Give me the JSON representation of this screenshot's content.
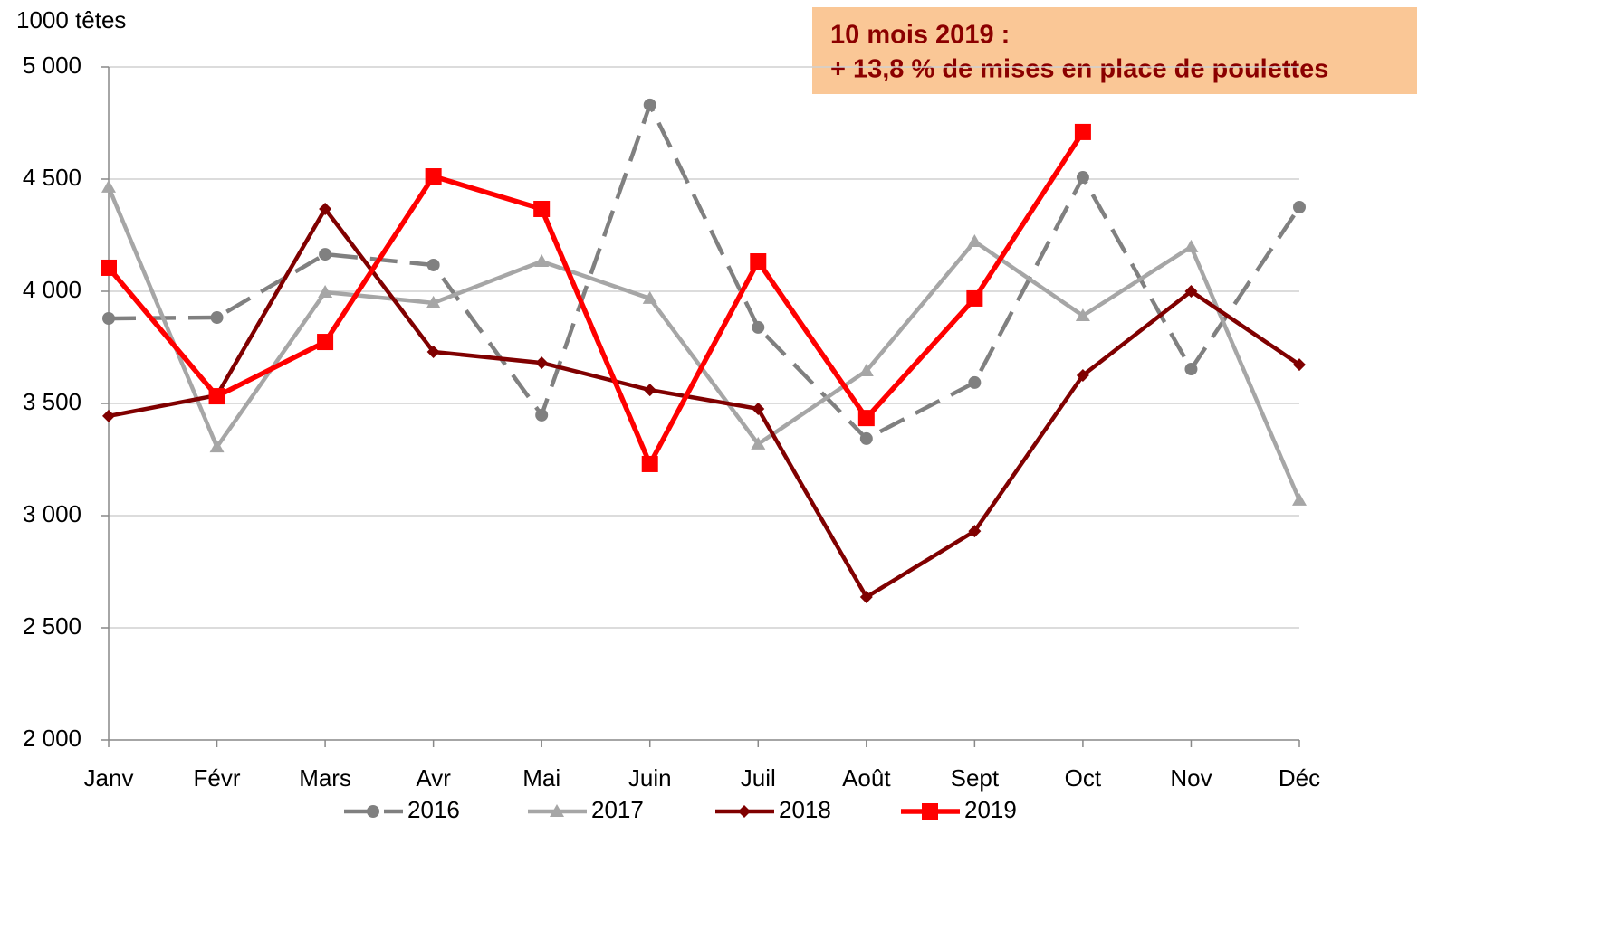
{
  "chart_data": {
    "type": "line",
    "y_label": "1000 têtes",
    "annotation": [
      "10 mois 2019 :",
      "+ 13,8 % de mises en place de poulettes"
    ],
    "categories": [
      "Janv",
      "Févr",
      "Mars",
      "Avr",
      "Mai",
      "Juin",
      "Juil",
      "Août",
      "Sept",
      "Oct",
      "Nov",
      "Déc"
    ],
    "series": [
      {
        "name": "2016",
        "color": "#808080",
        "marker": "circle",
        "dash": true,
        "values": [
          3879,
          3883,
          4165,
          4117,
          3448,
          4831,
          3839,
          3343,
          3593,
          4508,
          3653,
          4375
        ]
      },
      {
        "name": "2017",
        "color": "#a6a6a6",
        "marker": "triangle",
        "values": [
          4464,
          3306,
          3996,
          3948,
          4133,
          3968,
          3319,
          3645,
          4222,
          3891,
          4198,
          3069
        ]
      },
      {
        "name": "2018",
        "color": "#800000",
        "marker": "diamond",
        "values": [
          3444,
          3536,
          4367,
          3730,
          3681,
          3560,
          3476,
          2637,
          2931,
          3625,
          4000,
          3673
        ]
      },
      {
        "name": "2019",
        "color": "#ff0000",
        "marker": "square",
        "values": [
          4105,
          3532,
          3774,
          4512,
          4367,
          3230,
          4133,
          3435,
          3968,
          4710,
          null,
          null
        ]
      }
    ],
    "ylim": [
      2000,
      5000
    ],
    "yticks": [
      {
        "value": 2000,
        "label": "2 000"
      },
      {
        "value": 2500,
        "label": "2 500"
      },
      {
        "value": 3000,
        "label": "3 000"
      },
      {
        "value": 3500,
        "label": "3 500"
      },
      {
        "value": 4000,
        "label": "4 000"
      },
      {
        "value": 4500,
        "label": "4 500"
      },
      {
        "value": 5000,
        "label": "5 000"
      }
    ],
    "grid": true,
    "legend": "bottom"
  }
}
